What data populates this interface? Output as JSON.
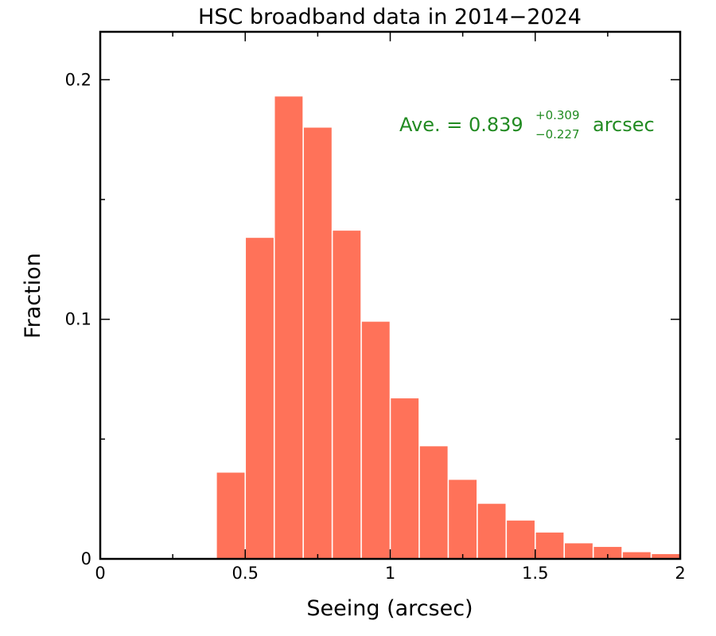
{
  "chart_data": {
    "type": "bar",
    "title": "HSC broadband data in 2014−2024",
    "xlabel": "Seeing (arcsec)",
    "ylabel": "Fraction",
    "xlim": [
      0,
      2
    ],
    "ylim": [
      0,
      0.22
    ],
    "bar_color": "#FF7259",
    "bin_width": 0.1,
    "bins": [
      {
        "x0": 0.4,
        "value": 0.036
      },
      {
        "x0": 0.5,
        "value": 0.134
      },
      {
        "x0": 0.6,
        "value": 0.193
      },
      {
        "x0": 0.7,
        "value": 0.18
      },
      {
        "x0": 0.8,
        "value": 0.137
      },
      {
        "x0": 0.9,
        "value": 0.099
      },
      {
        "x0": 1.0,
        "value": 0.067
      },
      {
        "x0": 1.1,
        "value": 0.047
      },
      {
        "x0": 1.2,
        "value": 0.033
      },
      {
        "x0": 1.3,
        "value": 0.023
      },
      {
        "x0": 1.4,
        "value": 0.016
      },
      {
        "x0": 1.5,
        "value": 0.011
      },
      {
        "x0": 1.6,
        "value": 0.0065
      },
      {
        "x0": 1.7,
        "value": 0.005
      },
      {
        "x0": 1.8,
        "value": 0.0028
      },
      {
        "x0": 1.9,
        "value": 0.002
      }
    ],
    "x_ticks": [
      {
        "value": 0,
        "label": "0"
      },
      {
        "value": 0.5,
        "label": "0.5"
      },
      {
        "value": 1,
        "label": "1"
      },
      {
        "value": 1.5,
        "label": "1.5"
      },
      {
        "value": 2,
        "label": "2"
      }
    ],
    "x_minor_ticks": [
      0.25,
      0.75,
      1.25,
      1.75
    ],
    "y_ticks": [
      {
        "value": 0,
        "label": "0"
      },
      {
        "value": 0.1,
        "label": "0.1"
      },
      {
        "value": 0.2,
        "label": "0.2"
      }
    ],
    "y_minor_ticks": [
      0.05,
      0.15
    ],
    "annotation": {
      "prefix": "Ave. = 0.839",
      "upper": "+0.309",
      "lower": "−0.227",
      "suffix": "arcsec",
      "color": "#228B22",
      "position": "top-right"
    }
  }
}
